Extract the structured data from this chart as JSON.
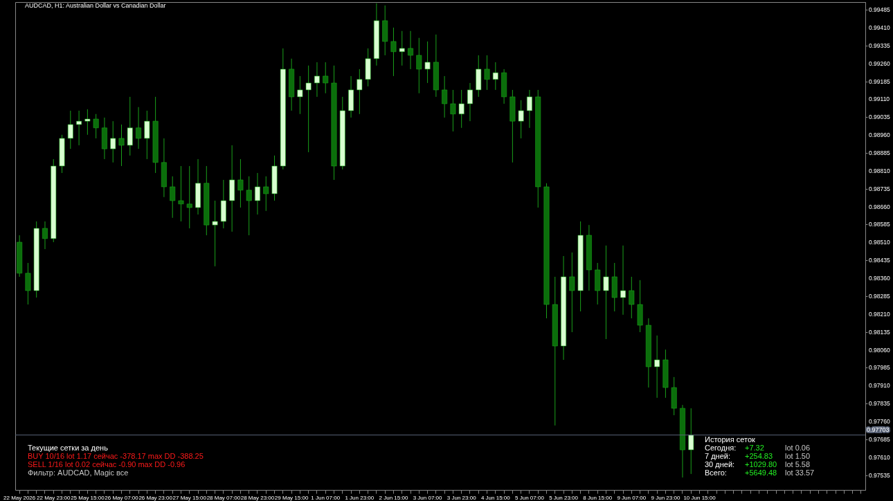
{
  "chart_data": {
    "type": "candlestick",
    "title": "AUDCAD, H1:  Australian Dollar vs Canadian Dollar",
    "categories": [
      "22 May 2026",
      null,
      null,
      null,
      "22 May 23:00",
      null,
      null,
      null,
      "25 May 15:00",
      null,
      null,
      null,
      "26 May 07:00",
      null,
      null,
      null,
      "26 May 23:00",
      null,
      null,
      null,
      "27 May 15:00",
      null,
      null,
      null,
      "28 May 07:00",
      null,
      null,
      null,
      "28 May 23:00",
      null,
      null,
      null,
      "29 May 15:00",
      null,
      null,
      null,
      "1 Jun 07:00",
      null,
      null,
      null,
      "1 Jun 23:00",
      null,
      null,
      null,
      "2 Jun 15:00",
      null,
      null,
      null,
      "3 Jun 07:00",
      null,
      null,
      null,
      "3 Jun 23:00",
      null,
      null,
      null,
      "4 Jun 15:00",
      null,
      null,
      null,
      "5 Jun 07:00",
      null,
      null,
      null,
      "5 Jun 23:00",
      null,
      null,
      null,
      "8 Jun 15:00",
      null,
      null,
      null,
      "9 Jun 07:00",
      null,
      null,
      null,
      "9 Jun 23:00",
      null,
      null,
      null,
      "10 Jun 15:00",
      null,
      null,
      null,
      null,
      null,
      null,
      null,
      null,
      null,
      null,
      null,
      null,
      null,
      null,
      null,
      null,
      null,
      null,
      null
    ],
    "ohlc": [
      [
        0.98511,
        0.9854,
        0.98366,
        0.98381
      ],
      [
        0.98381,
        0.98424,
        0.9825,
        0.98308
      ],
      [
        0.98308,
        0.98598,
        0.98279,
        0.98569
      ],
      [
        0.98569,
        0.98598,
        0.98482,
        0.98526
      ],
      [
        0.98526,
        0.98859,
        0.98511,
        0.9883
      ],
      [
        0.9883,
        0.98961,
        0.98801,
        0.98946
      ],
      [
        0.98946,
        0.99062,
        0.98902,
        0.99004
      ],
      [
        0.99004,
        0.99062,
        0.98917,
        0.99018
      ],
      [
        0.99018,
        0.99068,
        0.98961,
        0.99027
      ],
      [
        0.99027,
        0.99048,
        0.98946,
        0.9899
      ],
      [
        0.9899,
        0.99033,
        0.98859,
        0.98902
      ],
      [
        0.98902,
        0.99018,
        0.98845,
        0.98946
      ],
      [
        0.98946,
        0.99004,
        0.9883,
        0.98917
      ],
      [
        0.98917,
        0.9912,
        0.98874,
        0.9899
      ],
      [
        0.9899,
        0.99077,
        0.98902,
        0.98946
      ],
      [
        0.98946,
        0.99062,
        0.98859,
        0.99018
      ],
      [
        0.99018,
        0.9912,
        0.98801,
        0.98845
      ],
      [
        0.98845,
        0.98946,
        0.987,
        0.98743
      ],
      [
        0.98743,
        0.98787,
        0.98613,
        0.98685
      ],
      [
        0.98685,
        0.9883,
        0.98598,
        0.98671
      ],
      [
        0.98671,
        0.9883,
        0.98569,
        0.98656
      ],
      [
        0.98656,
        0.98859,
        0.98627,
        0.98758
      ],
      [
        0.98758,
        0.9883,
        0.9854,
        0.98583
      ],
      [
        0.98583,
        0.98685,
        0.9841,
        0.98598
      ],
      [
        0.98598,
        0.98772,
        0.98569,
        0.98685
      ],
      [
        0.98685,
        0.98917,
        0.98555,
        0.98772
      ],
      [
        0.98772,
        0.98859,
        0.98656,
        0.98729
      ],
      [
        0.98729,
        0.98787,
        0.9854,
        0.98685
      ],
      [
        0.98685,
        0.98801,
        0.98627,
        0.98743
      ],
      [
        0.98743,
        0.98787,
        0.98642,
        0.98714
      ],
      [
        0.98714,
        0.98874,
        0.98685,
        0.9883
      ],
      [
        0.9883,
        0.99323,
        0.98816,
        0.99236
      ],
      [
        0.99236,
        0.9928,
        0.99062,
        0.9912
      ],
      [
        0.9912,
        0.99207,
        0.99048,
        0.99149
      ],
      [
        0.99149,
        0.99251,
        0.98888,
        0.99178
      ],
      [
        0.99178,
        0.99265,
        0.9912,
        0.99207
      ],
      [
        0.99207,
        0.99265,
        0.99135,
        0.99178
      ],
      [
        0.99178,
        0.99251,
        0.98772,
        0.9883
      ],
      [
        0.9883,
        0.9912,
        0.98816,
        0.99062
      ],
      [
        0.99062,
        0.99207,
        0.99033,
        0.99149
      ],
      [
        0.99149,
        0.99236,
        0.99048,
        0.99193
      ],
      [
        0.99193,
        0.99323,
        0.99164,
        0.9928
      ],
      [
        0.9928,
        0.99512,
        0.99251,
        0.99439
      ],
      [
        0.99439,
        0.99503,
        0.99294,
        0.99352
      ],
      [
        0.99352,
        0.9941,
        0.99207,
        0.99309
      ],
      [
        0.99309,
        0.99396,
        0.99251,
        0.99323
      ],
      [
        0.99323,
        0.99396,
        0.99236,
        0.99294
      ],
      [
        0.99294,
        0.99367,
        0.99135,
        0.99236
      ],
      [
        0.99236,
        0.99352,
        0.99178,
        0.99265
      ],
      [
        0.99265,
        0.99381,
        0.9912,
        0.99149
      ],
      [
        0.99149,
        0.99207,
        0.99033,
        0.99091
      ],
      [
        0.99091,
        0.99149,
        0.98975,
        0.99048
      ],
      [
        0.99048,
        0.99149,
        0.9899,
        0.99091
      ],
      [
        0.99091,
        0.99178,
        0.99018,
        0.99149
      ],
      [
        0.99149,
        0.99294,
        0.9912,
        0.99236
      ],
      [
        0.99236,
        0.99294,
        0.99149,
        0.99193
      ],
      [
        0.99193,
        0.99265,
        0.99149,
        0.99221
      ],
      [
        0.99221,
        0.99236,
        0.99091,
        0.9912
      ],
      [
        0.9912,
        0.99149,
        0.98845,
        0.99018
      ],
      [
        0.99018,
        0.99106,
        0.98946,
        0.99062
      ],
      [
        0.99062,
        0.99149,
        0.9899,
        0.9912
      ],
      [
        0.9912,
        0.99149,
        0.98656,
        0.98743
      ],
      [
        0.98743,
        0.98758,
        0.98192,
        0.9825
      ],
      [
        0.9825,
        0.98366,
        0.97743,
        0.98076
      ],
      [
        0.98076,
        0.98453,
        0.98018,
        0.98366
      ],
      [
        0.98366,
        0.98468,
        0.98134,
        0.98308
      ],
      [
        0.98308,
        0.98598,
        0.98221,
        0.9854
      ],
      [
        0.9854,
        0.98583,
        0.98308,
        0.98395
      ],
      [
        0.98395,
        0.98424,
        0.9825,
        0.98308
      ],
      [
        0.98308,
        0.98497,
        0.98105,
        0.98366
      ],
      [
        0.98366,
        0.98424,
        0.98221,
        0.98279
      ],
      [
        0.98279,
        0.98497,
        0.98207,
        0.98308
      ],
      [
        0.98308,
        0.98366,
        0.98192,
        0.9825
      ],
      [
        0.9825,
        0.98352,
        0.98134,
        0.98163
      ],
      [
        0.98163,
        0.98192,
        0.97902,
        0.97989
      ],
      [
        0.97989,
        0.9812,
        0.97859,
        0.98018
      ],
      [
        0.98018,
        0.98061,
        0.97859,
        0.97902
      ],
      [
        0.97902,
        0.97946,
        0.97786,
        0.97815
      ],
      [
        0.97815,
        0.97829,
        0.97525,
        0.97641
      ],
      [
        0.97641,
        0.97815,
        0.9754,
        0.97703
      ],
      null,
      null,
      null,
      null,
      null,
      null,
      null,
      null,
      null,
      null,
      null,
      null,
      null,
      null,
      null,
      null,
      null,
      null,
      null,
      null
    ],
    "colors": [
      "#0b6e0b",
      "#0b6e0b",
      "#d8ffd0",
      "#0b6e0b",
      "#d8ffd0",
      "#d8ffd0",
      "#d8ffd0",
      "#d8ffd0",
      "#d8ffd0",
      "#0b6e0b",
      "#0b6e0b",
      "#d8ffd0",
      "#0b6e0b",
      "#d8ffd0",
      "#0b6e0b",
      "#d8ffd0",
      "#0b6e0b",
      "#0b6e0b",
      "#0b6e0b",
      "#0b6e0b",
      "#0b6e0b",
      "#d8ffd0",
      "#0b6e0b",
      "#d8ffd0",
      "#d8ffd0",
      "#d8ffd0",
      "#0b6e0b",
      "#0b6e0b",
      "#d8ffd0",
      "#0b6e0b",
      "#d8ffd0",
      "#d8ffd0",
      "#0b6e0b",
      "#d8ffd0",
      "#d8ffd0",
      "#d8ffd0",
      "#0b6e0b",
      "#0b6e0b",
      "#d8ffd0",
      "#d8ffd0",
      "#d8ffd0",
      "#d8ffd0",
      "#d8ffd0",
      "#0b6e0b",
      "#0b6e0b",
      "#d8ffd0",
      "#0b6e0b",
      "#0b6e0b",
      "#d8ffd0",
      "#0b6e0b",
      "#0b6e0b",
      "#0b6e0b",
      "#d8ffd0",
      "#d8ffd0",
      "#d8ffd0",
      "#0b6e0b",
      "#d8ffd0",
      "#0b6e0b",
      "#0b6e0b",
      "#d8ffd0",
      "#d8ffd0",
      "#0b6e0b",
      "#0b6e0b",
      "#0b6e0b",
      "#d8ffd0",
      "#0b6e0b",
      "#d8ffd0",
      "#0b6e0b",
      "#0b6e0b",
      "#d8ffd0",
      "#0b6e0b",
      "#d8ffd0",
      "#0b6e0b",
      "#0b6e0b",
      "#0b6e0b",
      "#d8ffd0",
      "#0b6e0b",
      "#0b6e0b",
      "#0b6e0b",
      "#d8ffd0",
      null,
      null,
      null,
      null,
      null,
      null,
      null,
      null,
      null,
      null,
      null,
      null,
      null,
      null,
      null,
      null,
      null,
      null,
      null,
      null
    ],
    "ylim": [
      0.97473,
      0.99517
    ],
    "yticks": [
      0.97535,
      {
        "value": 0.9761,
        "label": "0.97610"
      },
      0.97685,
      {
        "value": 0.9776,
        "label": "0.97760"
      },
      0.97835,
      {
        "value": 0.9791,
        "label": "0.97910"
      },
      0.97985,
      {
        "value": 0.9806,
        "label": "0.98060"
      },
      0.98135,
      {
        "value": 0.9821,
        "label": "0.98210"
      },
      0.98285,
      {
        "value": 0.9836,
        "label": "0.98360"
      },
      0.98435,
      {
        "value": 0.9851,
        "label": "0.98510"
      },
      0.98585,
      {
        "value": 0.9866,
        "label": "0.98660"
      },
      0.98735,
      {
        "value": 0.9881,
        "label": "0.98810"
      },
      0.98885,
      {
        "value": 0.9896,
        "label": "0.98960"
      },
      0.99035,
      {
        "value": 0.9911,
        "label": "0.99110"
      },
      0.99185,
      {
        "value": 0.9926,
        "label": "0.99260"
      },
      0.99335,
      {
        "value": 0.9941,
        "label": "0.99410"
      },
      0.99485
    ],
    "ref_lines": [
      {
        "axis": "y",
        "value": 0.97703,
        "label": "0.97703",
        "color": "#5a6478"
      }
    ],
    "annotations": [
      "Текущие сетки за день",
      "BUY 10/16  lot 1.17     сейчас -378.17   max DD -388.25",
      "SELL 1/16  lot 0.02     сейчас -0.90       max DD -0.96",
      "Фильтр: AUDCAD, Magic все",
      "История сеток",
      "Сегодня:",
      "+7.32",
      "lot 0.06",
      "7 дней:",
      "+254.83",
      "lot 1.50",
      "30 дней:",
      "+1029.80",
      "lot 5.58",
      "Всего:",
      "+5649.48",
      "lot 33.57"
    ]
  }
}
